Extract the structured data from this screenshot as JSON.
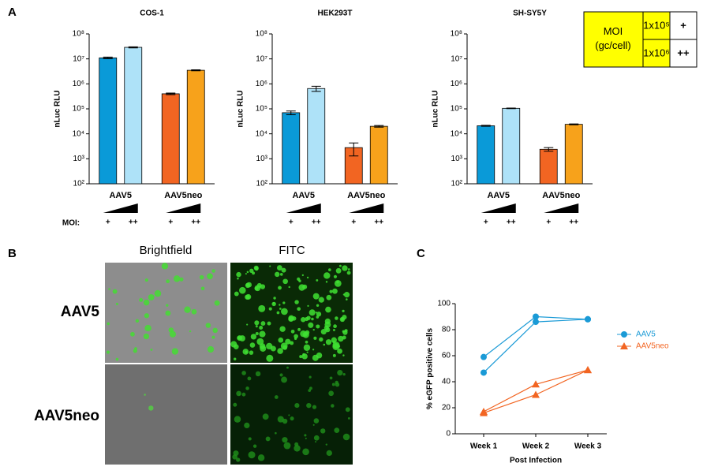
{
  "panel_labels": [
    "A",
    "B",
    "C"
  ],
  "moi_table": {
    "header": "MOI\n(gc/cell)",
    "rows": [
      [
        "1x10⁵",
        "+"
      ],
      [
        "1x10⁶",
        "++"
      ]
    ]
  },
  "microscopy": {
    "columns": [
      "Brightfield",
      "FITC"
    ],
    "rows": [
      "AAV5",
      "AAV5neo"
    ]
  },
  "chart_data": [
    {
      "type": "bar",
      "title": "COS-1",
      "ylabel": "nLuc RLU",
      "yscale": "log",
      "moi_label": "MOI:",
      "categories": [
        "AAV5",
        "AAV5neo"
      ],
      "series": [
        {
          "name": "+",
          "colors": [
            "#0a9ad8",
            "#f26522"
          ],
          "values": [
            11000000,
            400000
          ],
          "errors": [
            800000,
            30000
          ]
        },
        {
          "name": "++",
          "colors": [
            "#aee2f8",
            "#f7a21b"
          ],
          "values": [
            29000000,
            3500000
          ],
          "errors": [
            1500000,
            150000
          ]
        }
      ],
      "ylim": [
        100,
        100000000
      ],
      "yticks": [
        {
          "value": 100,
          "label": "10²"
        },
        {
          "value": 1000,
          "label": "10³"
        },
        {
          "value": 10000,
          "label": "10⁴"
        },
        {
          "value": 100000,
          "label": "10⁵"
        },
        {
          "value": 1000000,
          "label": "10⁶"
        },
        {
          "value": 10000000,
          "label": "10⁷"
        },
        {
          "value": 100000000,
          "label": "10⁸"
        }
      ]
    },
    {
      "type": "bar",
      "title": "HEK293T",
      "ylabel": "nLuc RLU",
      "yscale": "log",
      "categories": [
        "AAV5",
        "AAV5neo"
      ],
      "series": [
        {
          "name": "+",
          "colors": [
            "#0a9ad8",
            "#f26522"
          ],
          "values": [
            70000,
            2800
          ],
          "errors": [
            12000,
            1500
          ]
        },
        {
          "name": "++",
          "colors": [
            "#aee2f8",
            "#f7a21b"
          ],
          "values": [
            650000,
            20000
          ],
          "errors": [
            150000,
            1500
          ]
        }
      ],
      "ylim": [
        100,
        100000000
      ],
      "yticks": [
        {
          "value": 100,
          "label": "10²"
        },
        {
          "value": 1000,
          "label": "10³"
        },
        {
          "value": 10000,
          "label": "10⁴"
        },
        {
          "value": 100000,
          "label": "10⁵"
        },
        {
          "value": 1000000,
          "label": "10⁶"
        },
        {
          "value": 10000000,
          "label": "10⁷"
        },
        {
          "value": 100000000,
          "label": "10⁸"
        }
      ]
    },
    {
      "type": "bar",
      "title": "SH-SY5Y",
      "ylabel": "nLuc RLU",
      "yscale": "log",
      "categories": [
        "AAV5",
        "AAV5neo"
      ],
      "series": [
        {
          "name": "+",
          "colors": [
            "#0a9ad8",
            "#f26522"
          ],
          "values": [
            21000,
            2400
          ],
          "errors": [
            1000,
            400
          ]
        },
        {
          "name": "++",
          "colors": [
            "#aee2f8",
            "#f7a21b"
          ],
          "values": [
            105000,
            24000
          ],
          "errors": [
            3000,
            1000
          ]
        }
      ],
      "ylim": [
        100,
        100000000
      ],
      "yticks": [
        {
          "value": 100,
          "label": "10²"
        },
        {
          "value": 1000,
          "label": "10³"
        },
        {
          "value": 10000,
          "label": "10⁴"
        },
        {
          "value": 100000,
          "label": "10⁵"
        },
        {
          "value": 1000000,
          "label": "10⁶"
        },
        {
          "value": 10000000,
          "label": "10⁷"
        },
        {
          "value": 100000000,
          "label": "10⁸"
        }
      ]
    },
    {
      "type": "line",
      "xlabel": "Post  Infection",
      "ylabel": "% eGFP positive  cells",
      "categories": [
        "Week 1",
        "Week 2",
        "Week 3"
      ],
      "series": [
        {
          "name": "AAV5",
          "color": "#1a9ad6",
          "marker": "circle",
          "replicates": [
            [
              59,
              90,
              88
            ],
            [
              47,
              86,
              88
            ]
          ]
        },
        {
          "name": "AAV5neo",
          "color": "#f26522",
          "marker": "triangle",
          "replicates": [
            [
              17,
              38,
              49
            ],
            [
              16,
              30,
              49
            ]
          ]
        }
      ],
      "ylim": [
        0,
        100
      ],
      "yticks": [
        0,
        20,
        40,
        60,
        80,
        100
      ]
    }
  ]
}
